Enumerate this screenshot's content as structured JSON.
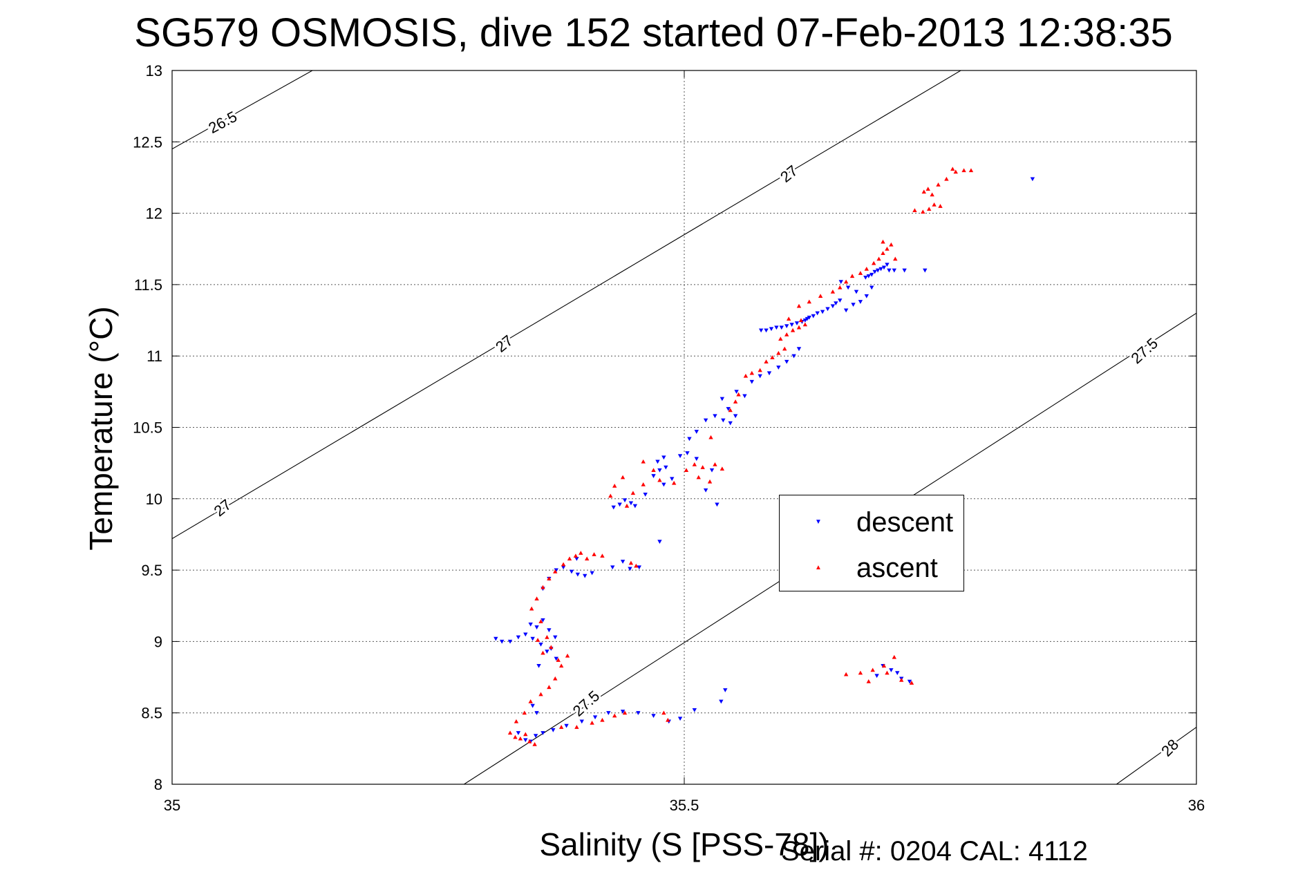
{
  "chart_data": {
    "type": "scatter",
    "title": "SG579 OSMOSIS, dive 152 started 07-Feb-2013 12:38:35",
    "xlabel": "Salinity (S [PSS-78])",
    "ylabel": "Temperature (°C)",
    "xlim": [
      35,
      36
    ],
    "ylim": [
      8,
      13
    ],
    "x_ticks": [
      35,
      35.5,
      36
    ],
    "x_tick_labels": [
      "35",
      "35.5",
      "36"
    ],
    "y_ticks": [
      8,
      8.5,
      9,
      9.5,
      10,
      10.5,
      11,
      11.5,
      12,
      12.5,
      13
    ],
    "y_tick_labels": [
      "8",
      "8.5",
      "9",
      "9.5",
      "10",
      "10.5",
      "11",
      "11.5",
      "12",
      "12.5",
      "13"
    ],
    "grid": true,
    "legend_position": "right-middle",
    "footer_text": "Serial #: 0204  CAL: 4112",
    "contours": [
      {
        "label": "26.5",
        "points": [
          [
            35.0,
            12.45
          ],
          [
            35.137,
            13.0
          ]
        ],
        "label_at": [
          35.05,
          12.63
        ],
        "label_angle": -28
      },
      {
        "label": "27",
        "points": [
          [
            35.0,
            9.72
          ],
          [
            35.77,
            13.0
          ]
        ],
        "label_at": [
          35.05,
          9.93
        ],
        "label_angle": -39
      },
      {
        "label": "27",
        "label_at": [
          35.325,
          11.08
        ],
        "label_angle": -39
      },
      {
        "label": "27",
        "label_at": [
          35.603,
          12.27
        ],
        "label_angle": -39
      },
      {
        "label": "27.5",
        "points": [
          [
            35.285,
            8.0
          ],
          [
            36.0,
            11.3
          ]
        ],
        "label_at": [
          35.405,
          8.56
        ],
        "label_angle": -42
      },
      {
        "label": "27.5",
        "label_at": [
          35.95,
          11.03
        ],
        "label_angle": -42
      },
      {
        "label": "28",
        "points": [
          [
            35.922,
            8.0
          ],
          [
            36.0,
            8.4
          ]
        ],
        "label_at": [
          35.975,
          8.25
        ],
        "label_angle": -45
      }
    ],
    "series": [
      {
        "name": "descent",
        "color": "#0000ff",
        "marker": "down-triangle",
        "points": [
          [
            35.316,
            9.02
          ],
          [
            35.322,
            9.0
          ],
          [
            35.33,
            9.0
          ],
          [
            35.338,
            9.03
          ],
          [
            35.345,
            9.05
          ],
          [
            35.35,
            9.12
          ],
          [
            35.356,
            9.1
          ],
          [
            35.352,
            9.02
          ],
          [
            35.36,
            8.98
          ],
          [
            35.366,
            8.93
          ],
          [
            35.375,
            8.88
          ],
          [
            35.37,
            8.95
          ],
          [
            35.358,
            8.83
          ],
          [
            35.368,
            9.08
          ],
          [
            35.362,
            9.15
          ],
          [
            35.374,
            9.03
          ],
          [
            35.352,
            8.55
          ],
          [
            35.356,
            8.5
          ],
          [
            35.338,
            8.36
          ],
          [
            35.345,
            8.31
          ],
          [
            35.35,
            8.3
          ],
          [
            35.355,
            8.34
          ],
          [
            35.362,
            8.36
          ],
          [
            35.372,
            8.38
          ],
          [
            35.385,
            8.41
          ],
          [
            35.4,
            8.44
          ],
          [
            35.413,
            8.47
          ],
          [
            35.426,
            8.5
          ],
          [
            35.44,
            8.51
          ],
          [
            35.455,
            8.5
          ],
          [
            35.47,
            8.48
          ],
          [
            35.485,
            8.44
          ],
          [
            35.496,
            8.46
          ],
          [
            35.51,
            8.52
          ],
          [
            35.536,
            8.58
          ],
          [
            35.54,
            8.66
          ],
          [
            35.362,
            9.37
          ],
          [
            35.368,
            9.44
          ],
          [
            35.375,
            9.5
          ],
          [
            35.382,
            9.52
          ],
          [
            35.39,
            9.49
          ],
          [
            35.396,
            9.47
          ],
          [
            35.403,
            9.46
          ],
          [
            35.41,
            9.48
          ],
          [
            35.43,
            9.52
          ],
          [
            35.447,
            9.51
          ],
          [
            35.456,
            9.52
          ],
          [
            35.44,
            9.56
          ],
          [
            35.395,
            9.58
          ],
          [
            35.431,
            9.94
          ],
          [
            35.437,
            9.96
          ],
          [
            35.442,
            9.99
          ],
          [
            35.448,
            9.97
          ],
          [
            35.452,
            9.95
          ],
          [
            35.476,
            9.7
          ],
          [
            35.462,
            10.03
          ],
          [
            35.47,
            10.16
          ],
          [
            35.476,
            10.2
          ],
          [
            35.482,
            10.22
          ],
          [
            35.488,
            10.14
          ],
          [
            35.474,
            10.26
          ],
          [
            35.48,
            10.29
          ],
          [
            35.496,
            10.3
          ],
          [
            35.503,
            10.32
          ],
          [
            35.512,
            10.28
          ],
          [
            35.527,
            10.2
          ],
          [
            35.521,
            10.06
          ],
          [
            35.532,
            9.96
          ],
          [
            35.48,
            10.1
          ],
          [
            35.505,
            10.42
          ],
          [
            35.512,
            10.47
          ],
          [
            35.521,
            10.55
          ],
          [
            35.53,
            10.58
          ],
          [
            35.538,
            10.55
          ],
          [
            35.545,
            10.53
          ],
          [
            35.55,
            10.58
          ],
          [
            35.543,
            10.63
          ],
          [
            35.537,
            10.7
          ],
          [
            35.551,
            10.75
          ],
          [
            35.559,
            10.72
          ],
          [
            35.566,
            10.82
          ],
          [
            35.574,
            10.86
          ],
          [
            35.583,
            10.88
          ],
          [
            35.592,
            10.92
          ],
          [
            35.6,
            10.96
          ],
          [
            35.607,
            11.0
          ],
          [
            35.612,
            11.05
          ],
          [
            35.575,
            11.18
          ],
          [
            35.58,
            11.18
          ],
          [
            35.585,
            11.19
          ],
          [
            35.59,
            11.2
          ],
          [
            35.595,
            11.2
          ],
          [
            35.6,
            11.21
          ],
          [
            35.605,
            11.22
          ],
          [
            35.61,
            11.23
          ],
          [
            35.615,
            11.24
          ],
          [
            35.618,
            11.25
          ],
          [
            35.62,
            11.26
          ],
          [
            35.622,
            11.27
          ],
          [
            35.626,
            11.28
          ],
          [
            35.63,
            11.3
          ],
          [
            35.635,
            11.31
          ],
          [
            35.64,
            11.33
          ],
          [
            35.645,
            11.35
          ],
          [
            35.648,
            11.37
          ],
          [
            35.652,
            11.39
          ],
          [
            35.658,
            11.32
          ],
          [
            35.665,
            11.36
          ],
          [
            35.672,
            11.38
          ],
          [
            35.678,
            11.42
          ],
          [
            35.683,
            11.48
          ],
          [
            35.668,
            11.45
          ],
          [
            35.66,
            11.48
          ],
          [
            35.653,
            11.52
          ],
          [
            35.677,
            11.55
          ],
          [
            35.68,
            11.56
          ],
          [
            35.683,
            11.57
          ],
          [
            35.686,
            11.59
          ],
          [
            35.689,
            11.6
          ],
          [
            35.692,
            11.61
          ],
          [
            35.695,
            11.62
          ],
          [
            35.698,
            11.64
          ],
          [
            35.7,
            11.6
          ],
          [
            35.705,
            11.6
          ],
          [
            35.715,
            11.6
          ],
          [
            35.735,
            11.6
          ],
          [
            35.84,
            12.24
          ],
          [
            35.694,
            8.83
          ],
          [
            35.702,
            8.8
          ],
          [
            35.708,
            8.78
          ],
          [
            35.688,
            8.76
          ],
          [
            35.712,
            8.74
          ],
          [
            35.72,
            8.72
          ]
        ]
      },
      {
        "name": "ascent",
        "color": "#ff0000",
        "marker": "up-triangle",
        "points": [
          [
            35.33,
            8.36
          ],
          [
            35.335,
            8.33
          ],
          [
            35.34,
            8.32
          ],
          [
            35.345,
            8.35
          ],
          [
            35.349,
            8.3
          ],
          [
            35.354,
            8.28
          ],
          [
            35.336,
            8.44
          ],
          [
            35.344,
            8.5
          ],
          [
            35.35,
            8.58
          ],
          [
            35.36,
            8.63
          ],
          [
            35.368,
            8.68
          ],
          [
            35.374,
            8.74
          ],
          [
            35.38,
            8.83
          ],
          [
            35.386,
            8.9
          ],
          [
            35.362,
            8.92
          ],
          [
            35.37,
            8.96
          ],
          [
            35.357,
            9.01
          ],
          [
            35.366,
            9.03
          ],
          [
            35.377,
            8.87
          ],
          [
            35.36,
            9.14
          ],
          [
            35.351,
            9.23
          ],
          [
            35.356,
            9.3
          ],
          [
            35.362,
            9.38
          ],
          [
            35.368,
            9.44
          ],
          [
            35.374,
            9.49
          ],
          [
            35.382,
            9.54
          ],
          [
            35.388,
            9.58
          ],
          [
            35.394,
            9.6
          ],
          [
            35.399,
            9.62
          ],
          [
            35.405,
            9.58
          ],
          [
            35.412,
            9.61
          ],
          [
            35.42,
            9.6
          ],
          [
            35.448,
            9.55
          ],
          [
            35.453,
            9.53
          ],
          [
            35.38,
            8.4
          ],
          [
            35.395,
            8.4
          ],
          [
            35.41,
            8.43
          ],
          [
            35.42,
            8.45
          ],
          [
            35.432,
            8.48
          ],
          [
            35.442,
            8.5
          ],
          [
            35.48,
            8.5
          ],
          [
            35.484,
            8.45
          ],
          [
            35.428,
            10.02
          ],
          [
            35.432,
            10.09
          ],
          [
            35.44,
            10.15
          ],
          [
            35.444,
            9.95
          ],
          [
            35.45,
            10.04
          ],
          [
            35.46,
            10.1
          ],
          [
            35.47,
            10.2
          ],
          [
            35.476,
            10.13
          ],
          [
            35.49,
            10.11
          ],
          [
            35.502,
            10.2
          ],
          [
            35.514,
            10.15
          ],
          [
            35.518,
            10.22
          ],
          [
            35.53,
            10.24
          ],
          [
            35.537,
            10.21
          ],
          [
            35.525,
            10.12
          ],
          [
            35.51,
            10.24
          ],
          [
            35.46,
            10.26
          ],
          [
            35.526,
            10.43
          ],
          [
            35.545,
            10.62
          ],
          [
            35.55,
            10.68
          ],
          [
            35.553,
            10.73
          ],
          [
            35.56,
            10.86
          ],
          [
            35.566,
            10.88
          ],
          [
            35.574,
            10.9
          ],
          [
            35.58,
            10.96
          ],
          [
            35.586,
            10.99
          ],
          [
            35.592,
            11.02
          ],
          [
            35.598,
            11.05
          ],
          [
            35.594,
            11.12
          ],
          [
            35.6,
            11.15
          ],
          [
            35.606,
            11.18
          ],
          [
            35.612,
            11.2
          ],
          [
            35.618,
            11.22
          ],
          [
            35.614,
            11.25
          ],
          [
            35.602,
            11.26
          ],
          [
            35.612,
            11.35
          ],
          [
            35.622,
            11.38
          ],
          [
            35.633,
            11.42
          ],
          [
            35.645,
            11.45
          ],
          [
            35.652,
            11.48
          ],
          [
            35.658,
            11.52
          ],
          [
            35.664,
            11.56
          ],
          [
            35.672,
            11.58
          ],
          [
            35.678,
            11.61
          ],
          [
            35.685,
            11.65
          ],
          [
            35.69,
            11.68
          ],
          [
            35.694,
            11.72
          ],
          [
            35.698,
            11.75
          ],
          [
            35.702,
            11.78
          ],
          [
            35.694,
            11.8
          ],
          [
            35.706,
            11.68
          ],
          [
            35.725,
            12.02
          ],
          [
            35.733,
            12.01
          ],
          [
            35.739,
            12.03
          ],
          [
            35.744,
            12.06
          ],
          [
            35.75,
            12.05
          ],
          [
            35.742,
            12.13
          ],
          [
            35.734,
            12.15
          ],
          [
            35.738,
            12.17
          ],
          [
            35.748,
            12.2
          ],
          [
            35.756,
            12.24
          ],
          [
            35.765,
            12.29
          ],
          [
            35.773,
            12.3
          ],
          [
            35.78,
            12.3
          ],
          [
            35.762,
            12.31
          ],
          [
            35.658,
            8.77
          ],
          [
            35.672,
            8.78
          ],
          [
            35.684,
            8.8
          ],
          [
            35.695,
            8.83
          ],
          [
            35.705,
            8.89
          ],
          [
            35.698,
            8.78
          ],
          [
            35.68,
            8.72
          ],
          [
            35.712,
            8.73
          ],
          [
            35.722,
            8.71
          ]
        ]
      }
    ],
    "legend": {
      "descent_label": "descent",
      "ascent_label": "ascent"
    }
  }
}
